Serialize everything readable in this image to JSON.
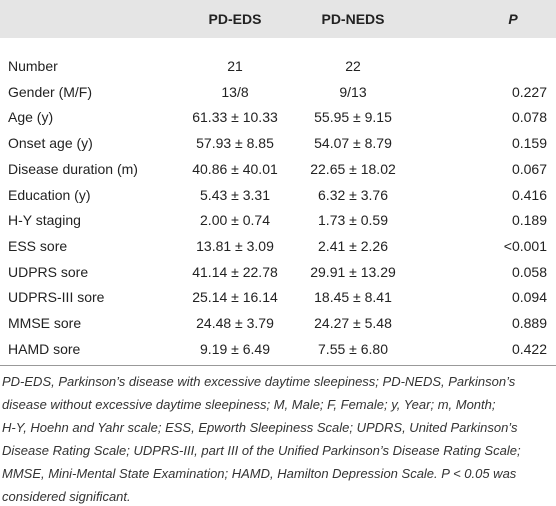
{
  "table": {
    "header": [
      "",
      "PD-EDS",
      "PD-NEDS",
      "P"
    ],
    "rows": [
      [
        "Number",
        "21",
        "22",
        ""
      ],
      [
        "Gender (M/F)",
        "13/8",
        "9/13",
        "0.227"
      ],
      [
        "Age (y)",
        "61.33 ± 10.33",
        "55.95 ± 9.15",
        "0.078"
      ],
      [
        "Onset age (y)",
        "57.93 ± 8.85",
        "54.07 ± 8.79",
        "0.159"
      ],
      [
        "Disease duration (m)",
        "40.86 ± 40.01",
        "22.65 ± 18.02",
        "0.067"
      ],
      [
        "Education (y)",
        "5.43 ± 3.31",
        "6.32 ± 3.76",
        "0.416"
      ],
      [
        "H-Y staging",
        "2.00 ± 0.74",
        "1.73 ± 0.59",
        "0.189"
      ],
      [
        "ESS sore",
        "13.81 ± 3.09",
        "2.41 ± 2.26",
        "<0.001"
      ],
      [
        "UDPRS sore",
        "41.14 ± 22.78",
        "29.91 ± 13.29",
        "0.058"
      ],
      [
        "UDPRS-III sore",
        "25.14 ± 16.14",
        "18.45 ± 8.41",
        "0.094"
      ],
      [
        "MMSE sore",
        "24.48 ± 3.79",
        "24.27 ± 5.48",
        "0.889"
      ],
      [
        "HAMD sore",
        "9.19 ± 6.49",
        "7.55 ± 6.80",
        "0.422"
      ]
    ]
  },
  "footnote": [
    "PD-EDS, Parkinson’s disease with excessive daytime sleepiness; PD-NEDS, Parkinson’s",
    "disease without excessive daytime sleepiness; M, Male; F, Female; y, Year; m, Month;",
    "H-Y, Hoehn and Yahr scale; ESS, Epworth Sleepiness Scale; UPDRS, United Parkinson’s",
    "Disease Rating Scale; UDPRS-III, part III of the Unified Parkinson’s Disease Rating Scale;",
    "MMSE, Mini-Mental State Examination; HAMD, Hamilton Depression Scale. P < 0.05 was",
    "considered significant."
  ]
}
